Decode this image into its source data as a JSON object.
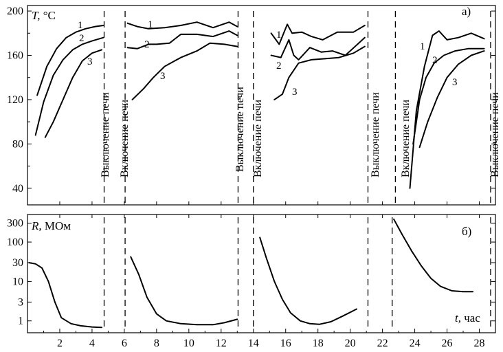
{
  "chart_data": [
    {
      "type": "line",
      "panel_label": "а)",
      "ylabel": {
        "symbol": "T,",
        "unit": "°C"
      },
      "ylim": [
        25,
        205
      ],
      "yticks": [
        40,
        80,
        120,
        160,
        200
      ],
      "xlim": [
        0,
        29
      ],
      "series": [
        {
          "name": "1",
          "segment": 1,
          "x": [
            0.6,
            1.2,
            1.8,
            2.4,
            3.0,
            3.6,
            4.2,
            4.7
          ],
          "y": [
            124,
            150,
            166,
            176,
            181,
            184,
            186,
            187
          ]
        },
        {
          "name": "2",
          "segment": 1,
          "x": [
            0.5,
            1.0,
            1.6,
            2.2,
            2.8,
            3.4,
            4.0,
            4.7
          ],
          "y": [
            88,
            118,
            142,
            156,
            165,
            170,
            173,
            176
          ]
        },
        {
          "name": "3",
          "segment": 1,
          "x": [
            1.1,
            1.6,
            2.2,
            2.8,
            3.4,
            4.0,
            4.6
          ],
          "y": [
            86,
            100,
            120,
            140,
            155,
            162,
            165
          ]
        },
        {
          "name": "1",
          "segment": 2,
          "x": [
            6.2,
            6.8,
            7.5,
            8.5,
            9.5,
            10.5,
            11.5,
            12.5,
            13.0
          ],
          "y": [
            189,
            186,
            184,
            185,
            187,
            190,
            185,
            190,
            186
          ]
        },
        {
          "name": "2",
          "segment": 2,
          "x": [
            6.2,
            6.8,
            7.5,
            8.0,
            8.8,
            9.5,
            10.5,
            11.5,
            12.5,
            13.0
          ],
          "y": [
            167,
            166,
            170,
            170,
            171,
            179,
            179,
            177,
            182,
            178
          ]
        },
        {
          "name": "3",
          "segment": 2,
          "x": [
            6.5,
            7.2,
            7.8,
            8.5,
            9.5,
            10.5,
            11.3,
            12.2,
            13.0
          ],
          "y": [
            120,
            130,
            140,
            150,
            158,
            164,
            171,
            170,
            168
          ]
        },
        {
          "name": "1",
          "segment": 3,
          "x": [
            15.1,
            15.6,
            16.1,
            16.4,
            17.0,
            17.6,
            18.3,
            19.2,
            20.2,
            20.9
          ],
          "y": [
            180,
            170,
            188,
            180,
            181,
            177,
            174,
            181,
            181,
            187
          ]
        },
        {
          "name": "2",
          "segment": 3,
          "x": [
            15.1,
            15.7,
            16.2,
            16.5,
            16.8,
            17.5,
            18.2,
            18.9,
            19.7,
            20.9
          ],
          "y": [
            160,
            158,
            174,
            160,
            156,
            167,
            163,
            164,
            160,
            176
          ]
        },
        {
          "name": "3",
          "segment": 3,
          "x": [
            15.3,
            15.8,
            16.2,
            16.8,
            17.6,
            18.5,
            19.3,
            20.2,
            20.9
          ],
          "y": [
            120,
            125,
            140,
            153,
            156,
            157,
            158,
            162,
            168
          ]
        },
        {
          "name": "1",
          "segment": 4,
          "x": [
            23.7,
            24.1,
            24.6,
            25.1,
            25.5,
            26.0,
            26.7,
            27.5,
            28.3
          ],
          "y": [
            40,
            110,
            150,
            178,
            182,
            174,
            176,
            180,
            175
          ]
        },
        {
          "name": "2",
          "segment": 4,
          "x": [
            23.9,
            24.3,
            24.7,
            25.2,
            25.8,
            26.5,
            27.3,
            28.3
          ],
          "y": [
            80,
            120,
            140,
            153,
            160,
            164,
            166,
            166
          ]
        },
        {
          "name": "3",
          "segment": 4,
          "x": [
            24.3,
            24.8,
            25.4,
            26.0,
            26.7,
            27.5,
            28.3
          ],
          "y": [
            77,
            100,
            122,
            140,
            152,
            160,
            164
          ]
        }
      ],
      "events": [
        {
          "t": 4.75,
          "label": "Выключение печи"
        },
        {
          "t": 6.05,
          "label": "Включение печи"
        },
        {
          "t": 13.05,
          "label": "Выключение печи"
        },
        {
          "t": 14.0,
          "label": "Включение печи"
        },
        {
          "t": 21.1,
          "label": "Выключение печи"
        },
        {
          "t": 22.8,
          "label": "Включение печи"
        },
        {
          "t": 28.7,
          "label": "Выключение печи"
        }
      ]
    },
    {
      "type": "line",
      "panel_label": "б)",
      "ylabel": {
        "symbol": "R,",
        "unit": "МОм"
      },
      "yscale": "log",
      "ylim": [
        0.5,
        500
      ],
      "yticks": [
        1,
        3,
        10,
        30,
        100,
        300
      ],
      "xlim": [
        0,
        29
      ],
      "xticks": [
        2,
        4,
        6,
        8,
        10,
        12,
        14,
        16,
        18,
        20,
        22,
        24,
        26,
        28
      ],
      "xlabel": {
        "symbol": "t,",
        "unit": "час"
      },
      "series": [
        {
          "segment": 1,
          "x": [
            0.1,
            0.5,
            0.9,
            1.3,
            1.7,
            2.1,
            2.7,
            3.3,
            4.0,
            4.6
          ],
          "y": [
            30,
            28,
            22,
            10,
            3,
            1.2,
            0.85,
            0.75,
            0.7,
            0.68
          ]
        },
        {
          "segment": 2,
          "x": [
            6.4,
            6.9,
            7.4,
            8.0,
            8.6,
            9.5,
            10.5,
            11.5,
            12.2,
            13.0
          ],
          "y": [
            42,
            15,
            4,
            1.5,
            1.0,
            0.85,
            0.8,
            0.8,
            0.9,
            1.1
          ]
        },
        {
          "segment": 3,
          "x": [
            14.4,
            14.8,
            15.3,
            15.8,
            16.3,
            16.9,
            17.5,
            18.1,
            18.8,
            19.5,
            20.4
          ],
          "y": [
            130,
            40,
            10,
            3.5,
            1.6,
            1.0,
            0.85,
            0.82,
            0.95,
            1.3,
            2.0
          ]
        },
        {
          "segment": 4,
          "x": [
            22.7,
            23.2,
            23.8,
            24.4,
            25.0,
            25.6,
            26.3,
            27.0,
            27.6
          ],
          "y": [
            380,
            160,
            60,
            25,
            12,
            7.5,
            5.8,
            5.5,
            5.5
          ]
        }
      ],
      "events": [
        {
          "t": 4.75
        },
        {
          "t": 6.05
        },
        {
          "t": 13.05
        },
        {
          "t": 14.0
        },
        {
          "t": 21.1
        },
        {
          "t": 22.6
        },
        {
          "t": 28.7
        }
      ]
    }
  ]
}
